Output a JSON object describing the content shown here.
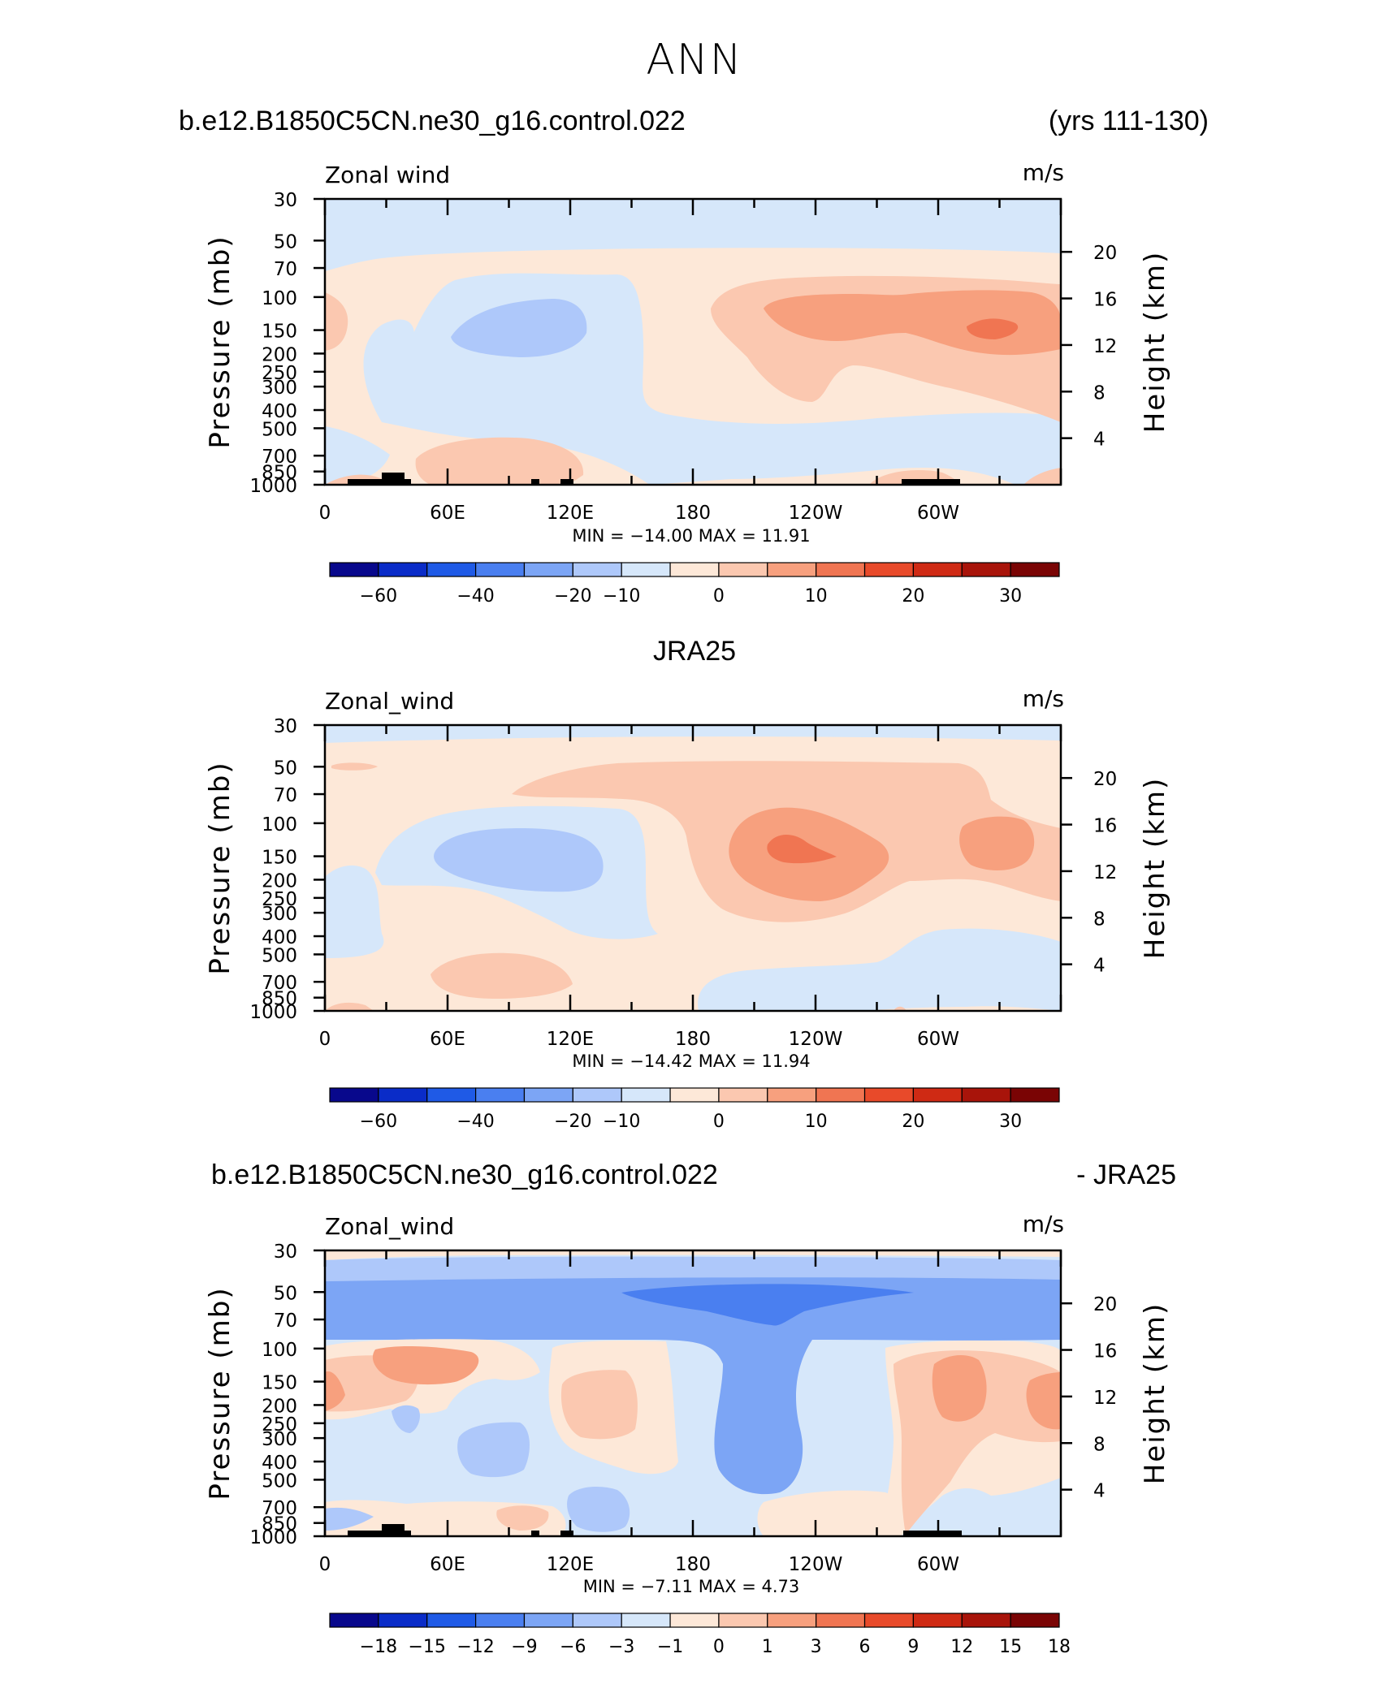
{
  "figure": {
    "title": "ANN",
    "panel1_left_title": "b.e12.B1850C5CN.ne30_g16.control.022",
    "panel1_right_title": "(yrs 111-130)",
    "panel2_center_title": "JRA25",
    "panel3_left_title": "b.e12.B1850C5CN.ne30_g16.control.022",
    "panel3_right_title": "- JRA25"
  },
  "colors": {
    "abs_palette": [
      "#08088c",
      "#0a2cc8",
      "#1f5ae6",
      "#4a7ff0",
      "#7ca5f5",
      "#aec8fa",
      "#d6e7fa",
      "#fde8d8",
      "#fbc8b0",
      "#f7a07e",
      "#f07552",
      "#e84a2a",
      "#cf2a14",
      "#a8140a",
      "#7a0404"
    ],
    "diff_palette": [
      "#08088c",
      "#0a2cc8",
      "#1f5ae6",
      "#4a7ff0",
      "#7ca5f5",
      "#aec8fa",
      "#d6e7fa",
      "#fde8d8",
      "#fbc8b0",
      "#f7a07e",
      "#f07552",
      "#e84a2a",
      "#cf2a14",
      "#a8140a",
      "#7a0404"
    ]
  },
  "chart_data": [
    {
      "type": "heatmap",
      "panel": "model",
      "label_left": "Zonal wind",
      "units": "m/s",
      "ylabel": "Pressure (mb)",
      "ylabel_right": "Height (km)",
      "pressure_ticks": [
        "30",
        "50",
        "70",
        "100",
        "150",
        "200",
        "250",
        "300",
        "400",
        "500",
        "700",
        "850",
        "1000"
      ],
      "pressure_values": [
        30,
        50,
        70,
        100,
        150,
        200,
        250,
        300,
        400,
        500,
        700,
        850,
        1000
      ],
      "height_ticks": [
        "20",
        "16",
        "12",
        "8",
        "4"
      ],
      "height_values": [
        20,
        16,
        12,
        8,
        4
      ],
      "lon_ticks": [
        "0",
        "60E",
        "120E",
        "180",
        "120W",
        "60W"
      ],
      "lon_values": [
        0,
        60,
        120,
        180,
        240,
        300
      ],
      "xlim": [
        0,
        360
      ],
      "ylim": [
        1000,
        30
      ],
      "stats": "MIN = −14.00   MAX =   11.91",
      "colorbar_labels": [
        "−60",
        "−40",
        "−20",
        "−10",
        "0",
        "10",
        "20",
        "30"
      ],
      "colorbar_label_positions": [
        1,
        3,
        5,
        6,
        8,
        10,
        12,
        14
      ]
    },
    {
      "type": "heatmap",
      "panel": "obs",
      "label_left": "Zonal_wind",
      "units": "m/s",
      "ylabel": "Pressure (mb)",
      "ylabel_right": "Height (km)",
      "pressure_ticks": [
        "30",
        "50",
        "70",
        "100",
        "150",
        "200",
        "250",
        "300",
        "400",
        "500",
        "700",
        "850",
        "1000"
      ],
      "pressure_values": [
        30,
        50,
        70,
        100,
        150,
        200,
        250,
        300,
        400,
        500,
        700,
        850,
        1000
      ],
      "height_ticks": [
        "20",
        "16",
        "12",
        "8",
        "4"
      ],
      "height_values": [
        20,
        16,
        12,
        8,
        4
      ],
      "lon_ticks": [
        "0",
        "60E",
        "120E",
        "180",
        "120W",
        "60W"
      ],
      "lon_values": [
        0,
        60,
        120,
        180,
        240,
        300
      ],
      "xlim": [
        0,
        360
      ],
      "ylim": [
        1000,
        30
      ],
      "stats": "MIN = −14.42   MAX =   11.94",
      "colorbar_labels": [
        "−60",
        "−40",
        "−20",
        "−10",
        "0",
        "10",
        "20",
        "30"
      ],
      "colorbar_label_positions": [
        1,
        3,
        5,
        6,
        8,
        10,
        12,
        14
      ]
    },
    {
      "type": "heatmap",
      "panel": "difference",
      "label_left": "Zonal_wind",
      "units": "m/s",
      "ylabel": "Pressure (mb)",
      "ylabel_right": "Height (km)",
      "pressure_ticks": [
        "30",
        "50",
        "70",
        "100",
        "150",
        "200",
        "250",
        "300",
        "400",
        "500",
        "700",
        "850",
        "1000"
      ],
      "pressure_values": [
        30,
        50,
        70,
        100,
        150,
        200,
        250,
        300,
        400,
        500,
        700,
        850,
        1000
      ],
      "height_ticks": [
        "20",
        "16",
        "12",
        "8",
        "4"
      ],
      "height_values": [
        20,
        16,
        12,
        8,
        4
      ],
      "lon_ticks": [
        "0",
        "60E",
        "120E",
        "180",
        "120W",
        "60W"
      ],
      "lon_values": [
        0,
        60,
        120,
        180,
        240,
        300
      ],
      "xlim": [
        0,
        360
      ],
      "ylim": [
        1000,
        30
      ],
      "stats": "MIN =    −7.11   MAX =     4.73",
      "colorbar_labels": [
        "−18",
        "−15",
        "−12",
        "−9",
        "−6",
        "−3",
        "−1",
        "0",
        "1",
        "3",
        "6",
        "9",
        "12",
        "15",
        "18"
      ],
      "colorbar_label_positions": [
        1,
        2,
        3,
        4,
        5,
        6,
        7,
        8,
        9,
        10,
        11,
        12,
        13,
        14,
        15
      ]
    }
  ]
}
